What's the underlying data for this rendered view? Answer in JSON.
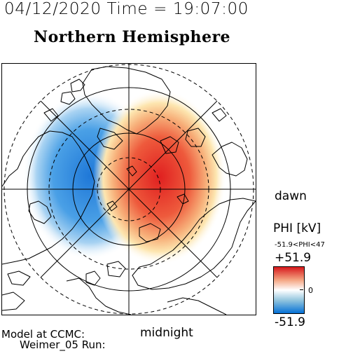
{
  "header": {
    "datetime_line": "04/12/2020 Time = 19:07:00",
    "title": "Northern Hemisphere"
  },
  "map": {
    "projection": "polar stereographic, north pole centered",
    "direction_labels": {
      "dawn": "dawn",
      "midnight": "midnight"
    },
    "potential_pattern": {
      "positive_cell": "dawn side, red",
      "negative_cell": "dusk side, blue"
    }
  },
  "colorbar": {
    "title": "PHI [kV]",
    "range_text": "-51.9<PHI<47",
    "max_label": "+51.9",
    "min_label": "-51.9",
    "zero_label": "0",
    "colors": {
      "max": "#d7191c",
      "zero": "#ffffff",
      "min": "#0571d6"
    }
  },
  "footer": {
    "model_line": "Model at CCMC:",
    "run_line": "Weimer_05 Run:"
  }
}
